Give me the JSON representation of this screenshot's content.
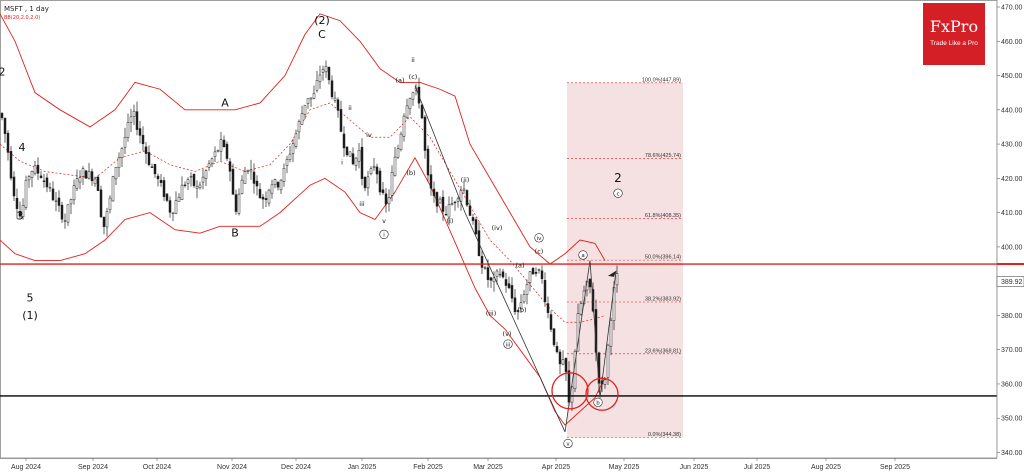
{
  "header": {
    "title": "MSFT , 1 day",
    "indicator": "BB(20,2.0,2.0)"
  },
  "logo": {
    "brand": "FxPro",
    "tagline": "Trade Like a Pro"
  },
  "colors": {
    "bull": "#3a3a3a",
    "bear": "#1a1a1a",
    "bands": "#e0201b",
    "midband": "#e0201b",
    "fib_zone": "#f2d9db",
    "resistance": "#e0201b",
    "support": "#000000",
    "wave_line": "#333333"
  },
  "chart_data": {
    "type": "candlestick",
    "title": "MSFT , 1 day",
    "ylim": [
      340,
      470
    ],
    "y_ticks": [
      "470.00",
      "460.00",
      "450.00",
      "440.00",
      "430.00",
      "420.00",
      "410.00",
      "400.00",
      "390.00",
      "380.00",
      "370.00",
      "360.00",
      "350.00",
      "340.00"
    ],
    "y_tick_values": [
      470,
      460,
      450,
      440,
      430,
      420,
      410,
      400,
      390,
      380,
      370,
      360,
      350,
      340
    ],
    "x_ticks": [
      "Aug 2024",
      "Sep 2024",
      "Oct 2024",
      "Nov 2024",
      "Dec 2024",
      "Jan 2025",
      "Feb 2025",
      "Mar 2025",
      "Apr 2025",
      "May 2025",
      "Jun 2025",
      "Jul 2025",
      "Aug 2025",
      "Sep 2025"
    ],
    "last_price": "389.92",
    "last_price_value": 389.92,
    "resistance_level": 395,
    "support_level": 356.5,
    "fibonacci": {
      "levels": [
        {
          "label": "100.0%(447.89)",
          "value": 447.89
        },
        {
          "label": "78.6%(425.74)",
          "value": 425.74
        },
        {
          "label": "61.8%(408.35)",
          "value": 408.35
        },
        {
          "label": "50.0%(396.14)",
          "value": 396.14
        },
        {
          "label": "38.2%(383.92)",
          "value": 383.92
        },
        {
          "label": "23.6%(368.81)",
          "value": 368.81
        },
        {
          "label": "0.0%(344.38)",
          "value": 344.38
        }
      ]
    },
    "price_path": [
      [
        0,
        439
      ],
      [
        6,
        430
      ],
      [
        12,
        417
      ],
      [
        20,
        408
      ],
      [
        26,
        420
      ],
      [
        32,
        423
      ],
      [
        40,
        421
      ],
      [
        48,
        417
      ],
      [
        56,
        412
      ],
      [
        64,
        408
      ],
      [
        72,
        416
      ],
      [
        80,
        422
      ],
      [
        88,
        421
      ],
      [
        96,
        420
      ],
      [
        102,
        405
      ],
      [
        108,
        412
      ],
      [
        114,
        423
      ],
      [
        120,
        428
      ],
      [
        126,
        434
      ],
      [
        132,
        439
      ],
      [
        140,
        432
      ],
      [
        148,
        425
      ],
      [
        156,
        420
      ],
      [
        164,
        415
      ],
      [
        170,
        410
      ],
      [
        176,
        414
      ],
      [
        182,
        418
      ],
      [
        188,
        420
      ],
      [
        196,
        417
      ],
      [
        202,
        420
      ],
      [
        208,
        424
      ],
      [
        214,
        427
      ],
      [
        220,
        430
      ],
      [
        228,
        425
      ],
      [
        234,
        410
      ],
      [
        240,
        418
      ],
      [
        246,
        424
      ],
      [
        252,
        421
      ],
      [
        258,
        415
      ],
      [
        264,
        414
      ],
      [
        270,
        419
      ],
      [
        276,
        418
      ],
      [
        282,
        421
      ],
      [
        288,
        427
      ],
      [
        294,
        432
      ],
      [
        300,
        438
      ],
      [
        306,
        444
      ],
      [
        312,
        443
      ],
      [
        318,
        450
      ],
      [
        324,
        453
      ],
      [
        330,
        446
      ],
      [
        336,
        440
      ],
      [
        342,
        431
      ],
      [
        348,
        427
      ],
      [
        352,
        424
      ],
      [
        358,
        428
      ],
      [
        362,
        418
      ],
      [
        368,
        420
      ],
      [
        374,
        425
      ],
      [
        380,
        416
      ],
      [
        386,
        411
      ],
      [
        392,
        423
      ],
      [
        398,
        430
      ],
      [
        404,
        441
      ],
      [
        410,
        445
      ],
      [
        416,
        445
      ],
      [
        420,
        441
      ],
      [
        426,
        421
      ],
      [
        432,
        414
      ],
      [
        438,
        413
      ],
      [
        444,
        410
      ],
      [
        450,
        412
      ],
      [
        456,
        415
      ],
      [
        462,
        418
      ],
      [
        468,
        411
      ],
      [
        474,
        404
      ],
      [
        480,
        396
      ],
      [
        486,
        391
      ],
      [
        492,
        389
      ],
      [
        498,
        393
      ],
      [
        504,
        390
      ],
      [
        510,
        386
      ],
      [
        516,
        380
      ],
      [
        522,
        386
      ],
      [
        528,
        391
      ],
      [
        534,
        394
      ],
      [
        540,
        392
      ],
      [
        546,
        382
      ],
      [
        552,
        374
      ],
      [
        558,
        365
      ],
      [
        564,
        366
      ],
      [
        568,
        354
      ],
      [
        572,
        362
      ],
      [
        576,
        378
      ],
      [
        582,
        386
      ],
      [
        588,
        390
      ],
      [
        592,
        382
      ],
      [
        596,
        365
      ],
      [
        600,
        358
      ],
      [
        604,
        362
      ],
      [
        608,
        374
      ],
      [
        612,
        386
      ],
      [
        616,
        391
      ],
      [
        618,
        390
      ]
    ],
    "bb_upper": [
      [
        0,
        468
      ],
      [
        15,
        460
      ],
      [
        35,
        445
      ],
      [
        60,
        440
      ],
      [
        90,
        435
      ],
      [
        115,
        440
      ],
      [
        135,
        448
      ],
      [
        160,
        446
      ],
      [
        185,
        440
      ],
      [
        210,
        440
      ],
      [
        235,
        440
      ],
      [
        260,
        442
      ],
      [
        285,
        450
      ],
      [
        305,
        462
      ],
      [
        320,
        468
      ],
      [
        340,
        466
      ],
      [
        360,
        460
      ],
      [
        380,
        452
      ],
      [
        400,
        448
      ],
      [
        420,
        448
      ],
      [
        440,
        446
      ],
      [
        455,
        444
      ],
      [
        470,
        430
      ],
      [
        490,
        420
      ],
      [
        510,
        410
      ],
      [
        530,
        400
      ],
      [
        550,
        395
      ],
      [
        565,
        398
      ],
      [
        580,
        402
      ],
      [
        595,
        401
      ],
      [
        605,
        396
      ]
    ],
    "bb_middle": [
      [
        0,
        430
      ],
      [
        20,
        425
      ],
      [
        45,
        422
      ],
      [
        70,
        421
      ],
      [
        95,
        420
      ],
      [
        120,
        426
      ],
      [
        145,
        428
      ],
      [
        170,
        424
      ],
      [
        195,
        422
      ],
      [
        220,
        425
      ],
      [
        245,
        422
      ],
      [
        270,
        424
      ],
      [
        290,
        430
      ],
      [
        310,
        440
      ],
      [
        330,
        442
      ],
      [
        350,
        437
      ],
      [
        370,
        432
      ],
      [
        390,
        432
      ],
      [
        410,
        438
      ],
      [
        430,
        432
      ],
      [
        450,
        422
      ],
      [
        470,
        412
      ],
      [
        490,
        402
      ],
      [
        510,
        396
      ],
      [
        530,
        389
      ],
      [
        550,
        382
      ],
      [
        565,
        378
      ],
      [
        580,
        378
      ],
      [
        595,
        379
      ],
      [
        605,
        380
      ]
    ],
    "bb_lower": [
      [
        0,
        402
      ],
      [
        15,
        398
      ],
      [
        35,
        396
      ],
      [
        60,
        396
      ],
      [
        85,
        398
      ],
      [
        105,
        402
      ],
      [
        125,
        408
      ],
      [
        150,
        410
      ],
      [
        175,
        405
      ],
      [
        200,
        404
      ],
      [
        220,
        406
      ],
      [
        240,
        406
      ],
      [
        260,
        406
      ],
      [
        280,
        410
      ],
      [
        295,
        414
      ],
      [
        310,
        418
      ],
      [
        325,
        420
      ],
      [
        345,
        416
      ],
      [
        360,
        410
      ],
      [
        375,
        408
      ],
      [
        395,
        416
      ],
      [
        415,
        426
      ],
      [
        430,
        418
      ],
      [
        445,
        408
      ],
      [
        460,
        398
      ],
      [
        475,
        388
      ],
      [
        490,
        380
      ],
      [
        505,
        376
      ],
      [
        520,
        370
      ],
      [
        540,
        362
      ],
      [
        555,
        352
      ],
      [
        565,
        348
      ],
      [
        580,
        352
      ],
      [
        595,
        356
      ],
      [
        605,
        362
      ]
    ],
    "wave_lines": [
      [
        [
          415,
          447
        ],
        [
          465,
          410
        ],
        [
          565,
          346
        ]
      ],
      [
        [
          565,
          346
        ],
        [
          590,
          396
        ],
        [
          600,
          356
        ],
        [
          616,
          393
        ]
      ]
    ],
    "wave_labels": [
      {
        "text": "2",
        "x": 2,
        "y": 450,
        "size": 11
      },
      {
        "text": "4",
        "x": 22,
        "y": 428,
        "size": 11
      },
      {
        "text": "3",
        "x": 20,
        "y": 408,
        "size": 11
      },
      {
        "text": "5",
        "x": 30,
        "y": 384,
        "size": 11
      },
      {
        "text": "(1)",
        "x": 30,
        "y": 379,
        "size": 11
      },
      {
        "text": "A",
        "x": 225,
        "y": 441,
        "size": 11
      },
      {
        "text": "B",
        "x": 235,
        "y": 403,
        "size": 11
      },
      {
        "text": "(2)",
        "x": 322,
        "y": 465,
        "size": 11
      },
      {
        "text": "C",
        "x": 322,
        "y": 461,
        "size": 11
      },
      {
        "text": "2",
        "x": 618,
        "y": 419,
        "size": 12
      }
    ],
    "wave_minor_labels": [
      {
        "text": "i",
        "x": 342,
        "y": 424
      },
      {
        "text": "ii",
        "x": 350,
        "y": 440
      },
      {
        "text": "iii",
        "x": 362,
        "y": 412
      },
      {
        "text": "iv",
        "x": 369,
        "y": 432
      },
      {
        "text": "v",
        "x": 384,
        "y": 407
      },
      {
        "text": "(a)",
        "x": 400,
        "y": 448
      },
      {
        "text": "(b)",
        "x": 411,
        "y": 421
      },
      {
        "text": "(c)",
        "x": 413,
        "y": 449
      },
      {
        "text": "ii",
        "x": 413,
        "y": 454
      },
      {
        "text": "(i)",
        "x": 450,
        "y": 407
      },
      {
        "text": "(ii)",
        "x": 465,
        "y": 419
      },
      {
        "text": "(iii)",
        "x": 491,
        "y": 380
      },
      {
        "text": "(iv)",
        "x": 497,
        "y": 405
      },
      {
        "text": "(v)",
        "x": 507,
        "y": 374
      },
      {
        "text": "(a)",
        "x": 520,
        "y": 394
      },
      {
        "text": "(b)",
        "x": 522,
        "y": 381
      },
      {
        "text": "(c)",
        "x": 539,
        "y": 398
      }
    ],
    "wave_circled_labels": [
      {
        "text": "i",
        "x": 384,
        "y": 403
      },
      {
        "text": "iii",
        "x": 508,
        "y": 371
      },
      {
        "text": "iv",
        "x": 539,
        "y": 402
      },
      {
        "text": "v",
        "x": 568,
        "y": 342
      },
      {
        "text": "a",
        "x": 583,
        "y": 397
      },
      {
        "text": "b",
        "x": 598,
        "y": 354
      },
      {
        "text": "c",
        "x": 618,
        "y": 415
      }
    ],
    "circle_markers": [
      {
        "x": 570,
        "y": 358,
        "r": 18
      },
      {
        "x": 602,
        "y": 357,
        "r": 16
      }
    ],
    "signal_arrows": [
      {
        "x": 616,
        "y": 393
      }
    ]
  }
}
